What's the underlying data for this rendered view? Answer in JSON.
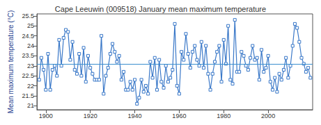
{
  "chart_data": {
    "type": "line",
    "title": "Cape Leeuwin (009518) January mean maximum temperature",
    "y_label": "Mean maximum temperature (°C)",
    "x": [
      1897,
      1898,
      1899,
      1900,
      1901,
      1902,
      1903,
      1904,
      1905,
      1906,
      1907,
      1908,
      1909,
      1910,
      1911,
      1912,
      1913,
      1914,
      1915,
      1916,
      1917,
      1918,
      1919,
      1920,
      1921,
      1922,
      1923,
      1924,
      1925,
      1926,
      1927,
      1928,
      1929,
      1930,
      1931,
      1932,
      1933,
      1934,
      1935,
      1936,
      1937,
      1938,
      1939,
      1940,
      1941,
      1942,
      1943,
      1944,
      1945,
      1946,
      1947,
      1948,
      1949,
      1950,
      1951,
      1952,
      1953,
      1954,
      1955,
      1956,
      1957,
      1958,
      1959,
      1960,
      1961,
      1962,
      1963,
      1964,
      1965,
      1966,
      1967,
      1968,
      1969,
      1970,
      1971,
      1972,
      1973,
      1974,
      1975,
      1976,
      1977,
      1978,
      1979,
      1980,
      1981,
      1982,
      1983,
      1984,
      1985,
      1986,
      1987,
      1988,
      1989,
      1990,
      1991,
      1992,
      1993,
      1994,
      1995,
      1996,
      1997,
      1998,
      1999,
      2000,
      2001,
      2002,
      2003,
      2004,
      2005,
      2006,
      2007,
      2008,
      2009,
      2010,
      2011,
      2012,
      2013,
      2014,
      2015,
      2016,
      2017,
      2018,
      2019
    ],
    "values": [
      22.3,
      23.4,
      22.8,
      21.8,
      23.6,
      21.8,
      22.8,
      23.0,
      22.5,
      24.3,
      23.0,
      24.4,
      24.8,
      24.7,
      23.3,
      24.2,
      22.8,
      22.6,
      23.6,
      22.5,
      23.9,
      22.2,
      23.5,
      22.9,
      22.6,
      22.3,
      22.3,
      22.3,
      24.5,
      21.6,
      22.5,
      22.9,
      23.6,
      24.1,
      23.7,
      23.2,
      23.5,
      22.3,
      22.7,
      21.8,
      21.8,
      22.2,
      21.8,
      22.3,
      21.1,
      21.4,
      22.3,
      21.7,
      22.0,
      21.6,
      23.2,
      22.4,
      23.4,
      21.8,
      23.3,
      22.2,
      21.9,
      23.0,
      22.2,
      22.4,
      22.8,
      25.1,
      22.0,
      21.6,
      23.7,
      23.3,
      24.6,
      23.6,
      22.9,
      23.7,
      24.0,
      23.3,
      23.0,
      24.2,
      22.9,
      24.0,
      22.6,
      21.8,
      22.6,
      23.2,
      23.7,
      24.0,
      22.2,
      24.3,
      23.1,
      25.0,
      22.3,
      22.1,
      25.3,
      22.7,
      22.7,
      23.7,
      23.5,
      23.0,
      22.8,
      23.4,
      24.0,
      23.3,
      23.4,
      22.3,
      23.8,
      22.7,
      22.9,
      23.5,
      22.2,
      21.8,
      22.4,
      21.7,
      22.6,
      22.3,
      22.8,
      23.4,
      22.4,
      23.0,
      24.0,
      25.1,
      24.9,
      24.2,
      23.4,
      23.1,
      22.7,
      22.9,
      22.4
    ],
    "color": "#3a78c8",
    "marker": "square",
    "line_style": "solid",
    "reference_line": 23.1,
    "reference_color": "#3b8fcf",
    "xlim": [
      1896,
      2020
    ],
    "xticks": [
      1900,
      1920,
      1940,
      1960,
      1980,
      2000
    ],
    "ylim": [
      20.8,
      25.6
    ],
    "yticks": [
      21,
      21.5,
      22,
      22.5,
      23,
      23.5,
      24,
      24.5,
      25,
      25.5
    ],
    "grid": false
  }
}
